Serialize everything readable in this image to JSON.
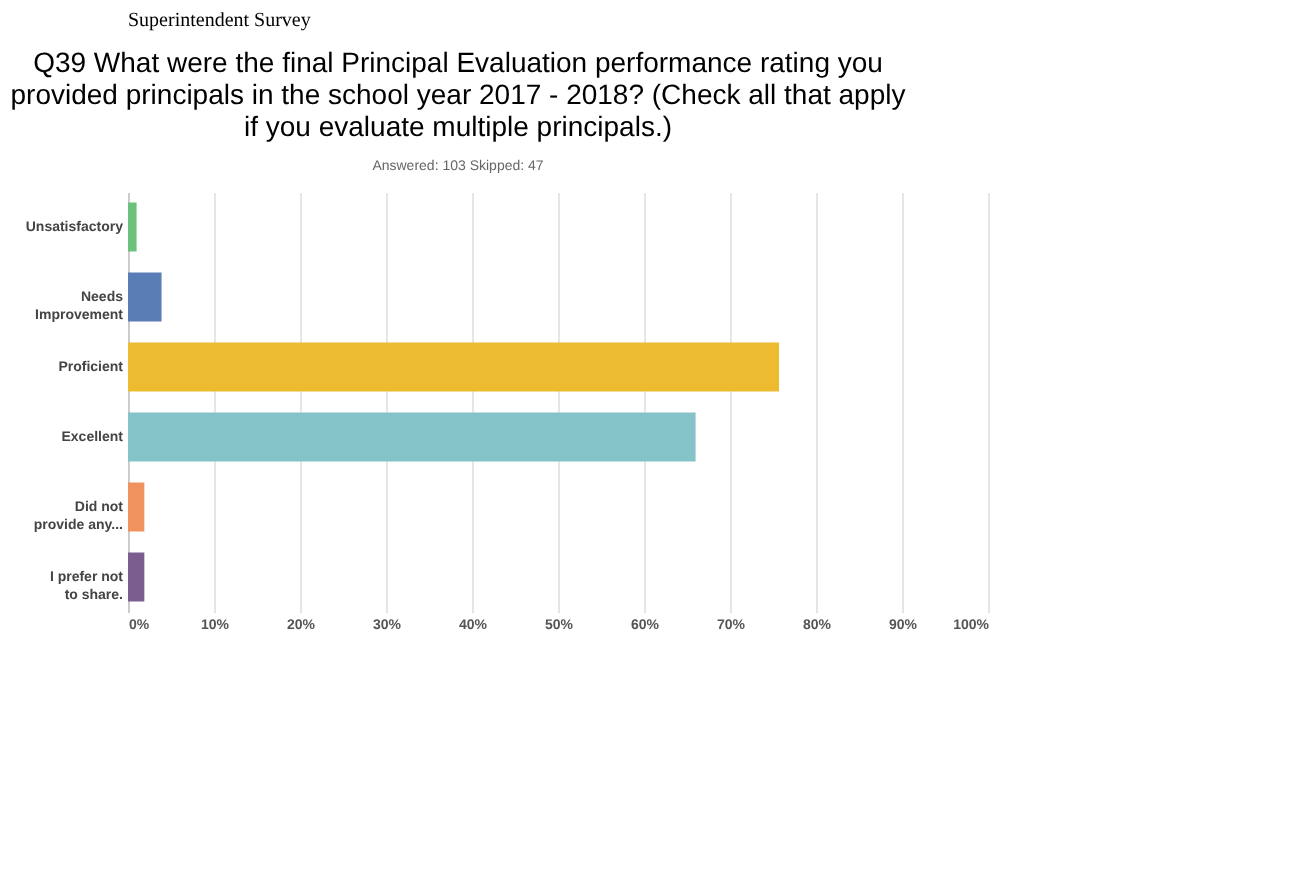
{
  "chart_data": {
    "type": "bar",
    "orientation": "horizontal",
    "title": "Q39 What were the final Principal Evaluation performance rating you provided principals in the school year 2017 - 2018? (Check all that apply if you evaluate multiple principals.)",
    "subtitle": "Answered: 103    Skipped: 47",
    "annotations": [
      "Superintendent Survey"
    ],
    "categories": [
      "Unsatisfactory",
      "Needs Improvement",
      "Proficient",
      "Excellent",
      "Did not provide any...",
      "I prefer not to share."
    ],
    "values": [
      1.0,
      3.9,
      75.7,
      66.0,
      1.9,
      1.9
    ],
    "colors": [
      "#6cc27a",
      "#5a7db5",
      "#edbb30",
      "#84c4c9",
      "#f0925e",
      "#7b5e8f"
    ],
    "xlim": [
      0,
      100
    ],
    "xticks": [
      {
        "value": 0,
        "label": "0%"
      },
      {
        "value": 10,
        "label": "10%"
      },
      {
        "value": 20,
        "label": "20%"
      },
      {
        "value": 30,
        "label": "30%"
      },
      {
        "value": 40,
        "label": "40%"
      },
      {
        "value": 50,
        "label": "50%"
      },
      {
        "value": 60,
        "label": "60%"
      },
      {
        "value": 70,
        "label": "70%"
      },
      {
        "value": 80,
        "label": "80%"
      },
      {
        "value": 90,
        "label": "90%"
      },
      {
        "value": 100,
        "label": "100%"
      }
    ],
    "grid": "x"
  }
}
